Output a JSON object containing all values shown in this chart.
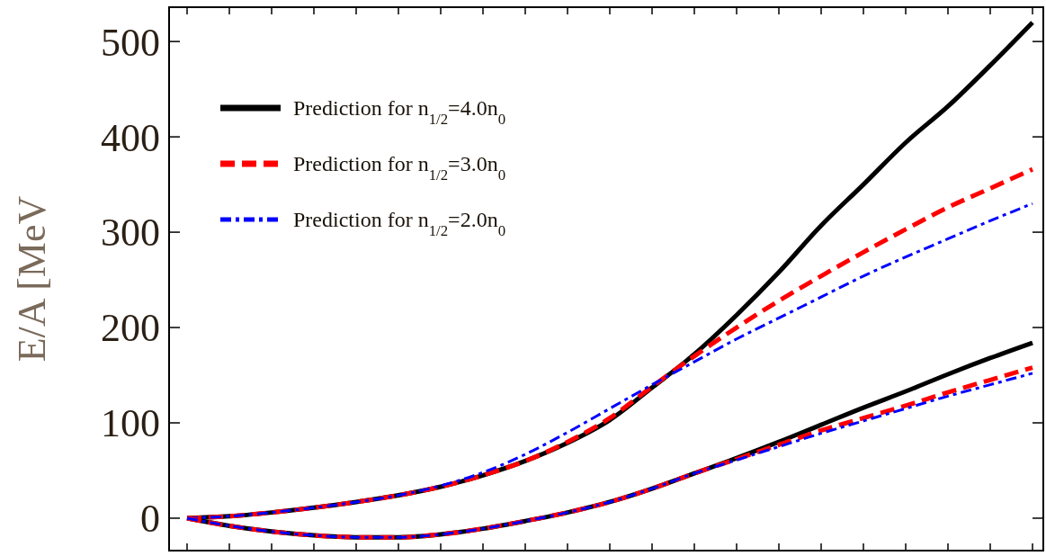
{
  "chart_data": {
    "type": "line",
    "ylabel": "E/A [MeV",
    "categories": [
      null,
      null,
      null,
      null,
      null,
      null,
      null,
      null,
      null,
      null,
      null,
      null,
      null,
      null,
      null,
      null,
      null,
      null,
      null,
      null,
      null
    ],
    "ylim": [
      -34,
      536
    ],
    "yticks": [
      0,
      100,
      200,
      300,
      400,
      500
    ],
    "legend": "top left",
    "tick_labels": "y",
    "series": [
      {
        "name": "Prediction for n$_{1/2}$=4.0n$_{0}$",
        "color": "#000000",
        "line_style": "solid",
        "values": [
          0,
          2,
          6,
          11,
          17,
          24,
          33,
          45,
          60,
          79,
          103,
          137,
          172,
          213,
          258,
          307,
          350,
          394,
          432,
          475,
          520
        ]
      },
      {
        "name": "Prediction for n$_{1/2}$=3.0n$_{0}$",
        "color": "#ff0000",
        "line_style": "dashed",
        "values": [
          0,
          2,
          6,
          11,
          17,
          24,
          33,
          45,
          60,
          80,
          105,
          138,
          170,
          200,
          228,
          254,
          279,
          303,
          326,
          346,
          366
        ]
      },
      {
        "name": "Prediction for n$_{1/2}$=2.0n$_{0}$",
        "color": "#0000ff",
        "line_style": "dotted",
        "values": [
          0,
          2,
          6,
          11,
          17,
          24,
          34,
          48,
          67,
          90,
          115,
          140,
          164,
          188,
          210,
          232,
          254,
          274,
          293,
          312,
          330
        ]
      },
      {
        "color": "#000000",
        "line_style": "solid",
        "values": [
          0,
          -8,
          -14,
          -18,
          -20,
          -20,
          -17,
          -11,
          -3,
          6,
          17,
          31,
          47,
          63,
          80,
          98,
          116,
          133,
          151,
          168,
          184
        ]
      },
      {
        "color": "#ff0000",
        "line_style": "dashed",
        "values": [
          0,
          -8,
          -14,
          -18,
          -20,
          -20,
          -17,
          -11,
          -3,
          6,
          17,
          31,
          47,
          62,
          77,
          92,
          105,
          118,
          132,
          145,
          158
        ]
      },
      {
        "color": "#0000ff",
        "line_style": "dotted",
        "values": [
          0,
          -8,
          -14,
          -18,
          -20,
          -20,
          -17,
          -11,
          -3,
          6,
          17,
          31,
          47,
          61,
          75,
          89,
          102,
          115,
          128,
          140,
          152
        ]
      }
    ]
  }
}
